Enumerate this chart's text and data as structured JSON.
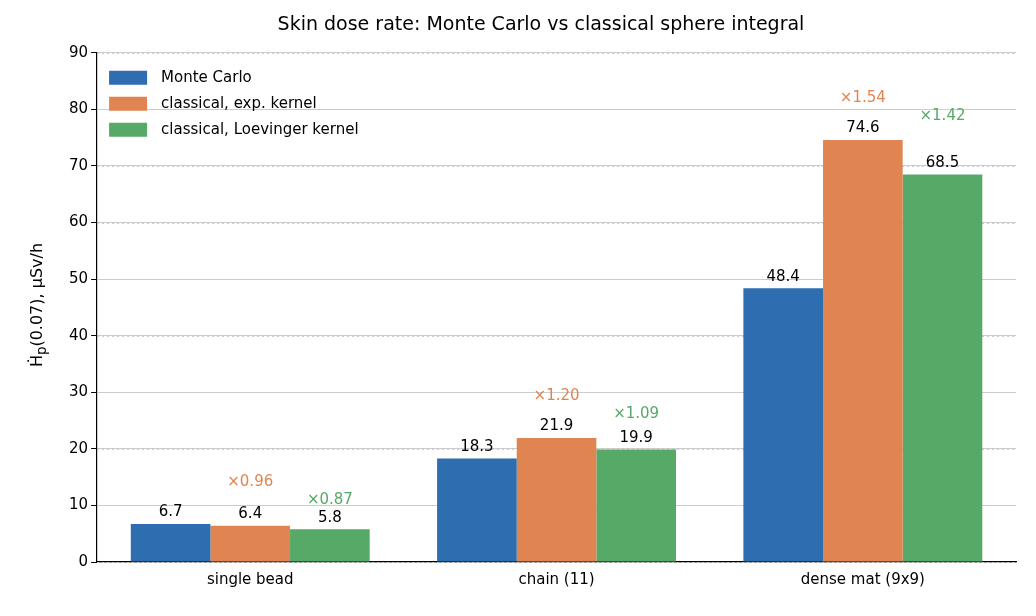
{
  "chart_data": {
    "type": "bar",
    "title": "Skin dose rate: Monte Carlo vs classical sphere integral",
    "ylabel": "Ḣ$_{p}$(0.07), µSv/h",
    "categories": [
      "single bead",
      "chain (11)",
      "dense mat (9x9)"
    ],
    "series": [
      {
        "name": "Monte Carlo",
        "color": "#2d6db0",
        "values": [
          6.7,
          18.3,
          48.4
        ]
      },
      {
        "name": "classical, exp. kernel",
        "color": "#e08552",
        "values": [
          6.4,
          21.9,
          74.6
        ]
      },
      {
        "name": "classical, Loevinger kernel",
        "color": "#57a968",
        "values": [
          5.8,
          19.9,
          68.5
        ]
      }
    ],
    "ylim": [
      0,
      90
    ],
    "yticks": [
      0,
      10,
      20,
      30,
      40,
      50,
      60,
      70,
      80,
      90
    ],
    "grid": "y",
    "line_style": "dotted",
    "legend": "top left",
    "data_labels": true,
    "annotations": [
      "×0.96",
      "×0.87",
      "×1.20",
      "×1.09",
      "×1.54",
      "×1.42"
    ]
  }
}
